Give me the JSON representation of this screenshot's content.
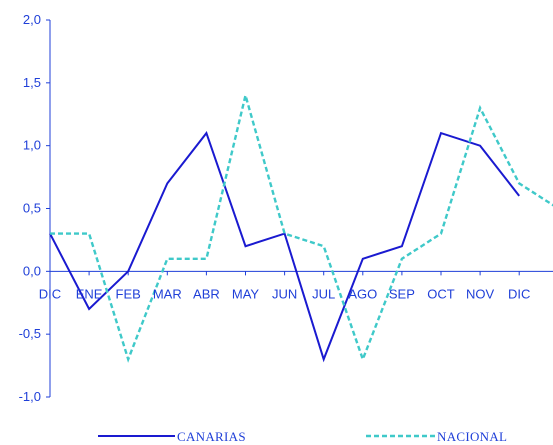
{
  "chart_data": {
    "type": "line",
    "categories": [
      "DIC",
      "ENE",
      "FEB",
      "MAR",
      "ABR",
      "MAY",
      "JUN",
      "JUL",
      "AGO",
      "SEP",
      "OCT",
      "NOV",
      "DIC"
    ],
    "y_tick_labels": [
      "2,0",
      "1,5",
      "1,0",
      "0,5",
      "0,0",
      "-0,5",
      "-1,0"
    ],
    "ylim": [
      -1.0,
      2.0
    ],
    "grid": false,
    "legend_position": "bottom",
    "series": [
      {
        "name": "CANARIAS",
        "style": "solid",
        "color": "#1a1ad0",
        "values": [
          0.3,
          -0.3,
          0.0,
          0.7,
          1.1,
          0.2,
          0.3,
          -0.7,
          0.1,
          0.2,
          1.1,
          1.0,
          0.6
        ]
      },
      {
        "name": "NACIONAL",
        "style": "dashed",
        "color": "#3fc9c9",
        "values": [
          0.3,
          0.3,
          -0.7,
          0.1,
          0.1,
          1.4,
          0.3,
          0.2,
          -0.7,
          0.1,
          0.3,
          1.3,
          0.7
        ],
        "extra_value_after_last": 0.5
      }
    ]
  }
}
